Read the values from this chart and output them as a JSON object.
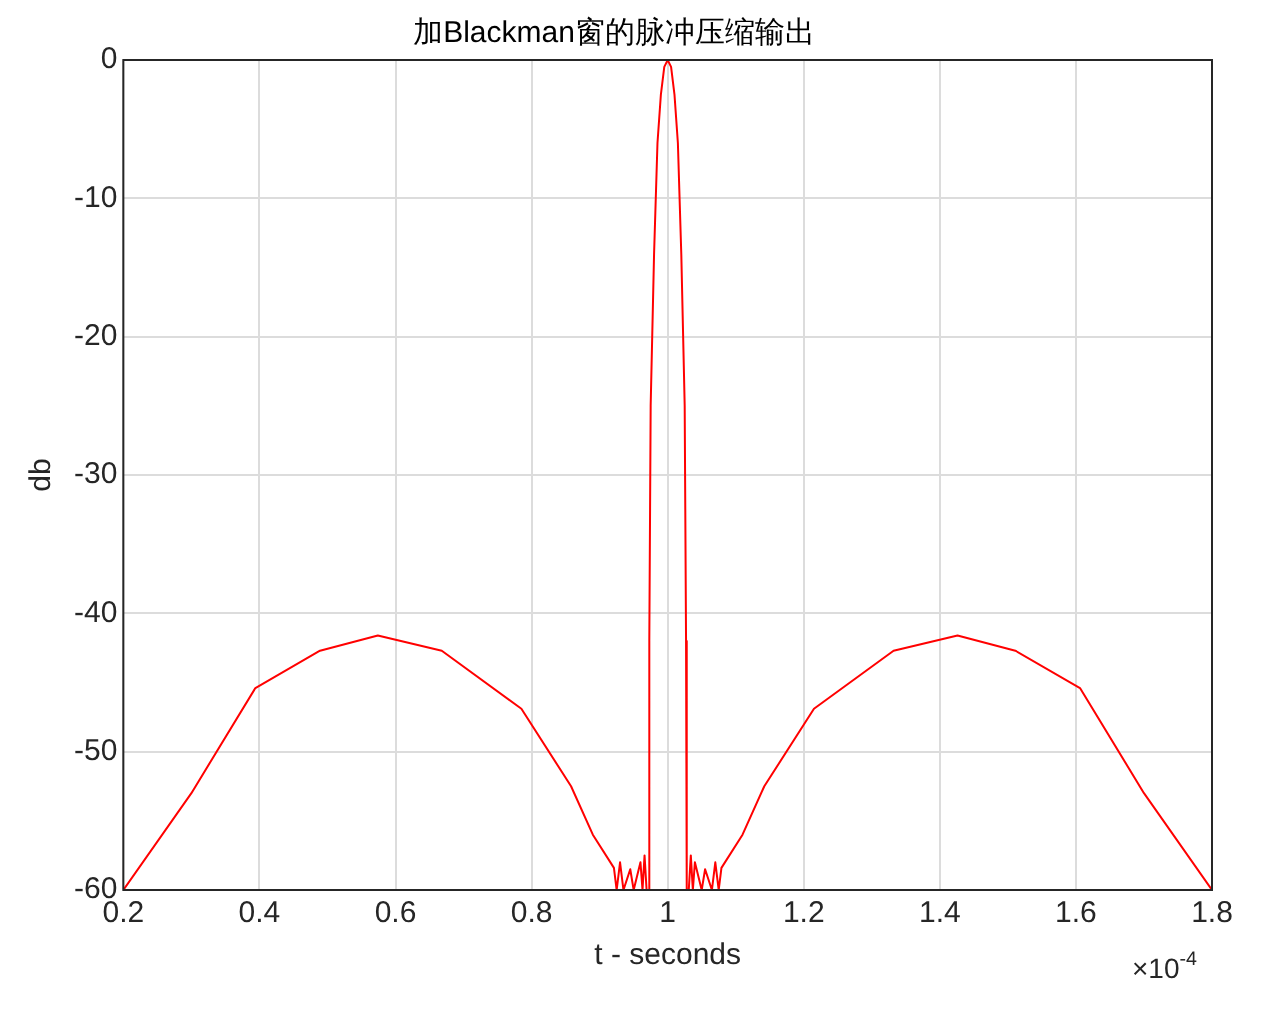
{
  "chart_data": {
    "type": "line",
    "title": "加Blackman窗的脉冲压缩输出",
    "xlabel": "t - seconds",
    "ylabel": "db",
    "annotations": [
      "×10$^{-4}$"
    ],
    "series": [
      {
        "color": "#ff0000",
        "x": [
          0.2,
          0.3,
          0.394,
          0.489,
          0.574,
          0.668,
          0.785,
          0.858,
          0.89,
          0.921,
          0.925,
          0.93,
          0.935,
          0.945,
          0.95,
          0.96,
          0.963,
          0.966,
          0.969,
          0.972,
          0.973,
          0.975,
          0.98,
          0.985,
          0.99,
          0.995,
          1.0,
          1.005,
          1.01,
          1.015,
          1.02,
          1.025,
          1.027,
          1.028,
          1.031,
          1.034,
          1.037,
          1.04,
          1.05,
          1.055,
          1.065,
          1.07,
          1.075,
          1.079,
          1.11,
          1.142,
          1.215,
          1.332,
          1.426,
          1.511,
          1.606,
          1.7,
          1.8
        ],
        "values": [
          -60,
          -53,
          -45.4,
          -42.7,
          -41.6,
          -42.7,
          -46.9,
          -52.5,
          -56,
          -58.4,
          -60,
          -58,
          -60,
          -58.5,
          -60,
          -58,
          -60,
          -57.5,
          -60,
          -60,
          -42,
          -25,
          -14,
          -6,
          -2.5,
          -0.5,
          0,
          -0.5,
          -2.5,
          -6,
          -14,
          -25,
          -42,
          -60,
          -60,
          -57.5,
          -60,
          -58,
          -60,
          -58.5,
          -60,
          -58,
          -60,
          -58.4,
          -56,
          -52.5,
          -46.9,
          -42.7,
          -41.6,
          -42.7,
          -45.4,
          -53,
          -60
        ]
      }
    ],
    "xlim": [
      0.2,
      1.8
    ],
    "xticks": [
      0.2,
      0.4,
      0.6,
      0.8,
      1,
      1.2,
      1.4,
      1.6,
      1.8
    ],
    "ylim": [
      -60,
      0
    ],
    "yticks": [
      -60,
      -50,
      -40,
      -30,
      -20,
      -10,
      0
    ],
    "grid": true,
    "legend": false,
    "marker": "none",
    "line_style": "solid"
  }
}
